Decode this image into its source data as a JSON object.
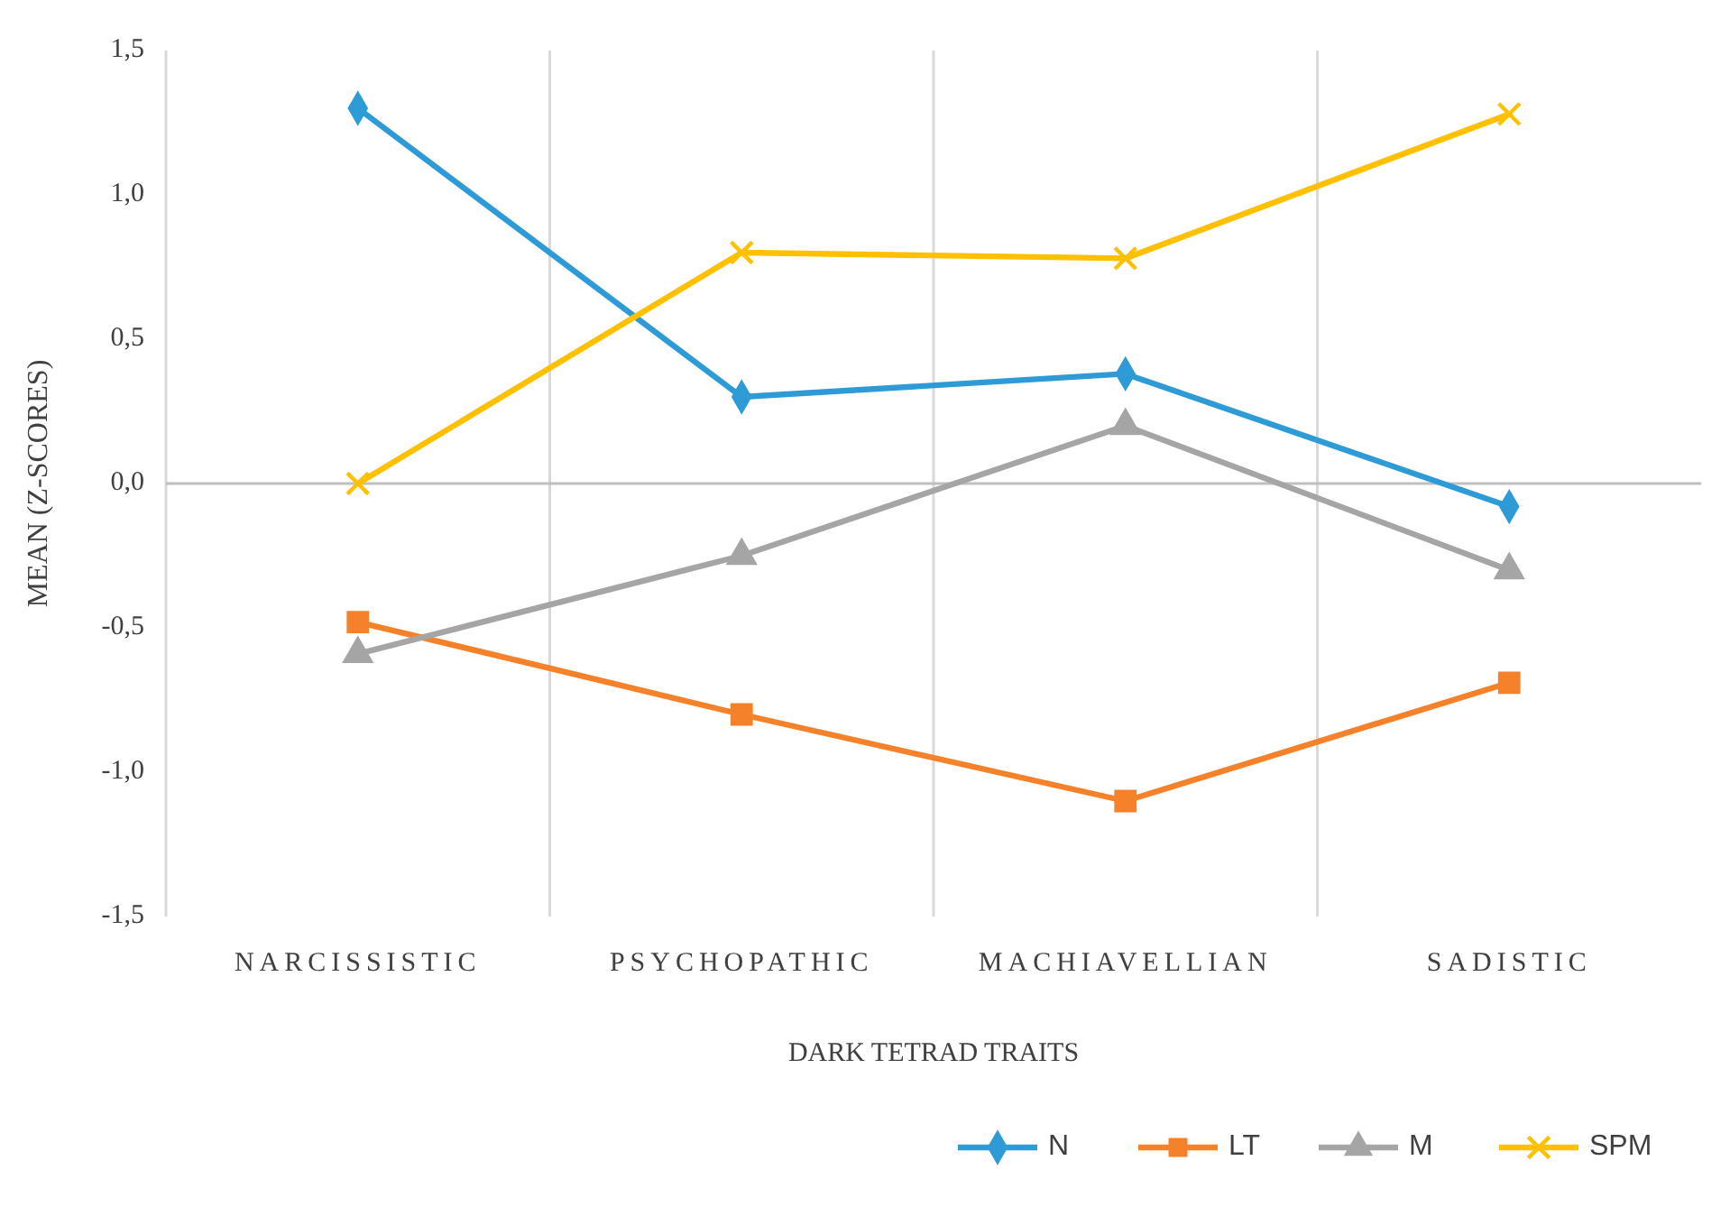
{
  "chart_data": {
    "type": "line",
    "xlabel": "DARK TETRAD TRAITS",
    "ylabel": "MEAN (Z-SCORES)",
    "categories": [
      "NARCISSISTIC",
      "PSYCHOPATHIC",
      "MACHIAVELLIAN",
      "SADISTIC"
    ],
    "series": [
      {
        "name": "N",
        "color": "#2e9bd6",
        "marker": "diamond",
        "values": [
          1.3,
          0.3,
          0.38,
          -0.08
        ]
      },
      {
        "name": "LT",
        "color": "#f5822a",
        "marker": "square",
        "values": [
          -0.48,
          -0.8,
          -1.1,
          -0.69
        ]
      },
      {
        "name": "M",
        "color": "#a5a5a5",
        "marker": "triangle",
        "values": [
          -0.59,
          -0.25,
          0.2,
          -0.3
        ]
      },
      {
        "name": "SPM",
        "color": "#ffc000",
        "marker": "cross",
        "values": [
          0,
          0.8,
          0.78,
          1.28
        ]
      }
    ],
    "ylim": [
      -1.5,
      1.5
    ],
    "yticks": [
      {
        "value": -1.5,
        "label": "-1,5"
      },
      {
        "value": -1,
        "label": "-1,0"
      },
      {
        "value": -0.5,
        "label": "-0,5"
      },
      {
        "value": 0,
        "label": "0,0"
      },
      {
        "value": 0.5,
        "label": "0,5"
      },
      {
        "value": 1,
        "label": "1,0"
      },
      {
        "value": 1.5,
        "label": "1,5"
      }
    ],
    "grid": "x",
    "legend": "bottom",
    "line_style": "solid"
  }
}
